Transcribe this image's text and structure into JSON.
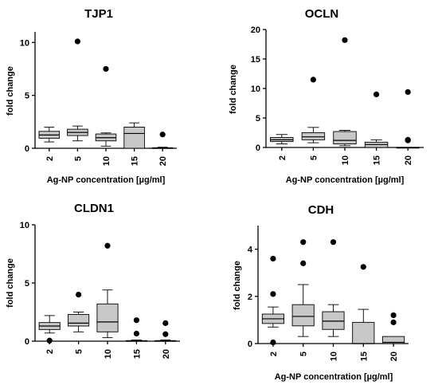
{
  "chart_data": [
    {
      "type": "box",
      "title": "TJP1",
      "xlabel": "Ag-NP concentration [µg/ml]",
      "ylabel": "fold change",
      "categories": [
        "2",
        "5",
        "10",
        "15",
        "20"
      ],
      "ylim": [
        0,
        11
      ],
      "yticks": [
        0,
        5,
        10
      ],
      "boxes": [
        {
          "category": "2",
          "min": 0.6,
          "q1": 0.95,
          "median": 1.25,
          "q3": 1.6,
          "max": 2.0,
          "outliers": []
        },
        {
          "category": "5",
          "min": 0.7,
          "q1": 1.2,
          "median": 1.5,
          "q3": 1.8,
          "max": 2.1,
          "outliers": [
            10.1
          ]
        },
        {
          "category": "10",
          "min": 0.2,
          "q1": 0.7,
          "median": 1.0,
          "q3": 1.35,
          "max": 1.45,
          "outliers": [
            7.5
          ]
        },
        {
          "category": "15",
          "min": 0.0,
          "q1": 0.0,
          "median": 1.4,
          "q3": 2.0,
          "max": 2.4,
          "outliers": []
        },
        {
          "category": "20",
          "min": 0.0,
          "q1": 0.0,
          "median": 0.0,
          "q3": 0.05,
          "max": 0.1,
          "outliers": [
            1.3
          ]
        }
      ]
    },
    {
      "type": "box",
      "title": "OCLN",
      "xlabel": "Ag-NP concentration [µg/ml]",
      "ylabel": "fold change",
      "categories": [
        "2",
        "5",
        "10",
        "15",
        "20"
      ],
      "ylim": [
        0,
        20
      ],
      "yticks": [
        0,
        5,
        10,
        15,
        20
      ],
      "boxes": [
        {
          "category": "2",
          "min": 0.6,
          "q1": 1.0,
          "median": 1.3,
          "q3": 1.7,
          "max": 2.2,
          "outliers": []
        },
        {
          "category": "5",
          "min": 0.8,
          "q1": 1.3,
          "median": 1.8,
          "q3": 2.5,
          "max": 3.4,
          "outliers": [
            11.5
          ]
        },
        {
          "category": "10",
          "min": 0.3,
          "q1": 0.6,
          "median": 1.2,
          "q3": 2.7,
          "max": 2.9,
          "outliers": [
            18.2
          ]
        },
        {
          "category": "15",
          "min": 0.0,
          "q1": 0.0,
          "median": 0.5,
          "q3": 0.9,
          "max": 1.3,
          "outliers": [
            9.0
          ]
        },
        {
          "category": "20",
          "min": 0.0,
          "q1": 0.0,
          "median": 0.0,
          "q3": 0.0,
          "max": 0.0,
          "outliers": [
            9.4,
            1.2,
            1.3
          ]
        }
      ]
    },
    {
      "type": "box",
      "title": "CLDN1",
      "xlabel": "",
      "ylabel": "fold change",
      "categories": [
        "2",
        "5",
        "10",
        "15",
        "20"
      ],
      "ylim": [
        0,
        10
      ],
      "yticks": [
        0,
        5,
        10
      ],
      "boxes": [
        {
          "category": "2",
          "min": 0.7,
          "q1": 1.0,
          "median": 1.3,
          "q3": 1.6,
          "max": 2.2,
          "outliers": [
            0.05
          ]
        },
        {
          "category": "5",
          "min": 0.8,
          "q1": 1.3,
          "median": 1.55,
          "q3": 2.3,
          "max": 2.5,
          "outliers": [
            4.0
          ]
        },
        {
          "category": "10",
          "min": 0.3,
          "q1": 0.8,
          "median": 1.65,
          "q3": 3.2,
          "max": 4.4,
          "outliers": [
            8.2
          ]
        },
        {
          "category": "15",
          "min": 0.0,
          "q1": 0.0,
          "median": 0.0,
          "q3": 0.05,
          "max": 0.1,
          "outliers": [
            1.8,
            0.65
          ]
        },
        {
          "category": "20",
          "min": 0.0,
          "q1": 0.0,
          "median": 0.0,
          "q3": 0.05,
          "max": 0.1,
          "outliers": [
            1.55,
            0.6
          ]
        }
      ]
    },
    {
      "type": "box",
      "title": "CDH",
      "xlabel": "Ag-NP concentration [µg/ml]",
      "ylabel": "fold change",
      "categories": [
        "2",
        "5",
        "10",
        "15",
        "20"
      ],
      "ylim": [
        0,
        5
      ],
      "yticks": [
        0,
        2,
        4
      ],
      "boxes": [
        {
          "category": "2",
          "min": 0.7,
          "q1": 0.85,
          "median": 1.05,
          "q3": 1.25,
          "max": 1.55,
          "outliers": [
            3.6,
            2.1,
            0.05
          ]
        },
        {
          "category": "5",
          "min": 0.3,
          "q1": 0.75,
          "median": 1.15,
          "q3": 1.65,
          "max": 2.5,
          "outliers": [
            4.3,
            3.4
          ]
        },
        {
          "category": "10",
          "min": 0.3,
          "q1": 0.6,
          "median": 0.95,
          "q3": 1.35,
          "max": 1.65,
          "outliers": [
            4.3
          ]
        },
        {
          "category": "15",
          "min": 0.0,
          "q1": 0.0,
          "median": 0.0,
          "q3": 0.9,
          "max": 1.45,
          "outliers": [
            3.25
          ]
        },
        {
          "category": "20",
          "min": 0.0,
          "q1": 0.0,
          "median": 0.05,
          "q3": 0.3,
          "max": 0.3,
          "outliers": [
            1.2,
            0.9
          ]
        }
      ]
    }
  ]
}
